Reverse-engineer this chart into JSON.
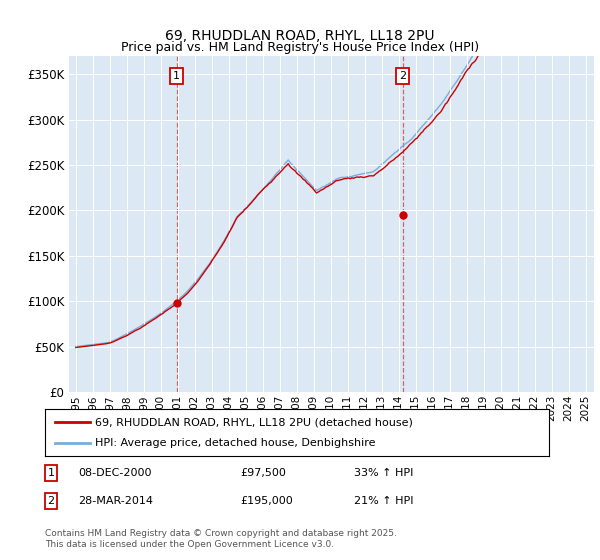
{
  "title": "69, RHUDDLAN ROAD, RHYL, LL18 2PU",
  "subtitle": "Price paid vs. HM Land Registry's House Price Index (HPI)",
  "ylabel_ticks": [
    "£0",
    "£50K",
    "£100K",
    "£150K",
    "£200K",
    "£250K",
    "£300K",
    "£350K"
  ],
  "ytick_values": [
    0,
    50000,
    100000,
    150000,
    200000,
    250000,
    300000,
    350000
  ],
  "ylim": [
    0,
    370000
  ],
  "xlim_start": 1994.6,
  "xlim_end": 2025.5,
  "plot_bg_color": "#dce9f5",
  "red_color": "#cc0000",
  "blue_color": "#7aaddb",
  "marker1_x": 2000.93,
  "marker1_y": 97500,
  "marker2_x": 2014.24,
  "marker2_y": 195000,
  "marker1_label": "1",
  "marker2_label": "2",
  "legend_line1": "69, RHUDDLAN ROAD, RHYL, LL18 2PU (detached house)",
  "legend_line2": "HPI: Average price, detached house, Denbighshire",
  "table_row1": [
    "1",
    "08-DEC-2000",
    "£97,500",
    "33% ↑ HPI"
  ],
  "table_row2": [
    "2",
    "28-MAR-2014",
    "£195,000",
    "21% ↑ HPI"
  ],
  "footer": "Contains HM Land Registry data © Crown copyright and database right 2025.\nThis data is licensed under the Open Government Licence v3.0."
}
